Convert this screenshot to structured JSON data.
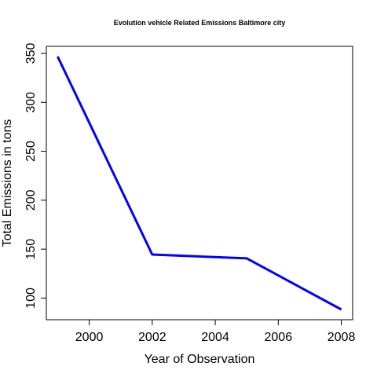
{
  "chart_data": {
    "type": "line",
    "title": "Evolution vehicle Related Emissions Baltimore city",
    "xlabel": "Year of Observation",
    "ylabel": "Total Emissions in tons",
    "x": [
      1999,
      2002,
      2005,
      2008
    ],
    "series": [
      {
        "values": [
          346.8,
          144.5,
          140.6,
          88.3
        ],
        "color": "#0000ff"
      }
    ],
    "xticks": [
      2000,
      2002,
      2004,
      2006,
      2008
    ],
    "yticks": [
      100,
      150,
      200,
      250,
      300,
      350
    ],
    "xlim": [
      1998.64,
      2008.36
    ],
    "ylim": [
      77.9,
      357.2
    ],
    "grid": false,
    "legend": "none"
  }
}
